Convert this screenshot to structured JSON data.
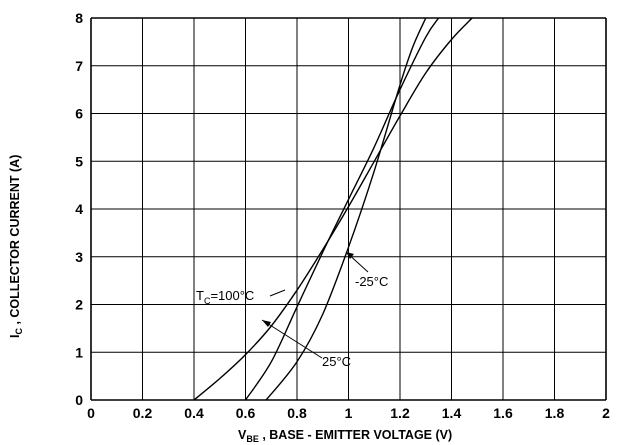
{
  "chart_data": {
    "type": "line",
    "title": "",
    "xlabel": {
      "symbol": "V",
      "subscript": "BE",
      "text": " , BASE - EMITTER VOLTAGE  (V)"
    },
    "ylabel": {
      "symbol": "I",
      "subscript": "C",
      "text": " , COLLECTOR CURRENT  (A)"
    },
    "xlim": [
      0,
      2
    ],
    "ylim": [
      0,
      8
    ],
    "xticks": [
      "0",
      "0.2",
      "0.4",
      "0.6",
      "0.8",
      "1",
      "1.2",
      "1.4",
      "1.6",
      "1.8",
      "2"
    ],
    "yticks": [
      "0",
      "1",
      "2",
      "3",
      "4",
      "5",
      "6",
      "7",
      "8"
    ],
    "grid": true,
    "series": [
      {
        "name": "T_C=100°C",
        "x": [
          0.4,
          0.5,
          0.6,
          0.7,
          0.8,
          0.9,
          1.0,
          1.1,
          1.2,
          1.3,
          1.4,
          1.48
        ],
        "y": [
          0,
          0.45,
          0.95,
          1.55,
          2.3,
          3.15,
          4.05,
          5.0,
          5.95,
          6.85,
          7.55,
          8.0
        ]
      },
      {
        "name": "25°C",
        "x": [
          0.6,
          0.7,
          0.8,
          0.9,
          1.0,
          1.1,
          1.2,
          1.3,
          1.35
        ],
        "y": [
          0,
          0.8,
          1.95,
          3.1,
          4.2,
          5.3,
          6.5,
          7.6,
          8.0
        ]
      },
      {
        "name": "-25°C",
        "x": [
          0.68,
          0.8,
          0.9,
          1.0,
          1.1,
          1.2,
          1.25,
          1.3
        ],
        "y": [
          0,
          0.8,
          1.8,
          3.2,
          4.8,
          6.6,
          7.4,
          8.0
        ]
      }
    ],
    "annotations": [
      {
        "series": "T_C=100°C",
        "label_main": "T",
        "label_sub": "C",
        "label_rest": "=100°C"
      },
      {
        "series": "25°C",
        "label_main": "25°C"
      },
      {
        "series": "-25°C",
        "label_main": "-25°C"
      }
    ]
  }
}
